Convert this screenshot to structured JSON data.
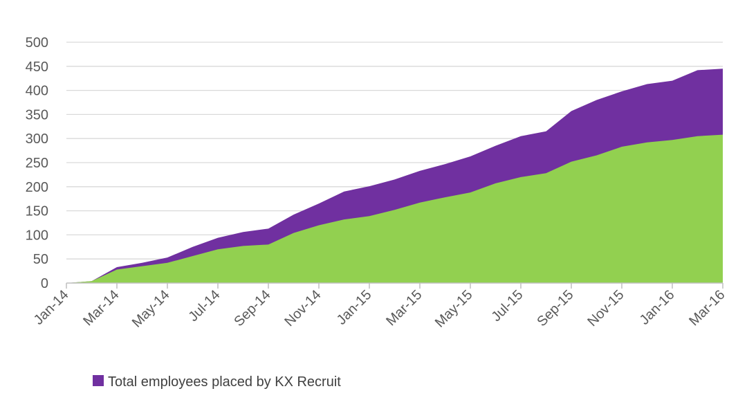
{
  "chart_data": {
    "type": "area",
    "title": "",
    "xlabel": "",
    "ylabel": "",
    "ylim": [
      0,
      500
    ],
    "yticks": [
      0,
      50,
      100,
      150,
      200,
      250,
      300,
      350,
      400,
      450,
      500
    ],
    "grid": true,
    "legend_position": "bottom-left",
    "x": [
      "Jan-14",
      "Feb-14",
      "Mar-14",
      "Apr-14",
      "May-14",
      "Jun-14",
      "Jul-14",
      "Aug-14",
      "Sep-14",
      "Oct-14",
      "Nov-14",
      "Dec-14",
      "Jan-15",
      "Feb-15",
      "Mar-15",
      "Apr-15",
      "May-15",
      "Jun-15",
      "Jul-15",
      "Aug-15",
      "Sep-15",
      "Oct-15",
      "Nov-15",
      "Dec-15",
      "Jan-16",
      "Feb-16",
      "Mar-16"
    ],
    "xtick_labels": [
      "Jan-14",
      "Mar-14",
      "May-14",
      "Jul-14",
      "Sep-14",
      "Nov-14",
      "Jan-15",
      "Mar-15",
      "May-15",
      "Jul-15",
      "Sep-15",
      "Nov-15",
      "Jan-16",
      "Mar-16"
    ],
    "series": [
      {
        "name": "Total employees placed by KX Recruit",
        "color": "#7030a0",
        "values": [
          0,
          4,
          33,
          42,
          53,
          75,
          94,
          106,
          113,
          142,
          165,
          190,
          201,
          215,
          233,
          247,
          263,
          285,
          305,
          315,
          357,
          380,
          398,
          413,
          420,
          442,
          445
        ]
      },
      {
        "name": "",
        "color": "#92d050",
        "values": [
          0,
          4,
          28,
          35,
          42,
          56,
          70,
          77,
          80,
          104,
          120,
          132,
          139,
          152,
          167,
          178,
          188,
          207,
          220,
          228,
          252,
          265,
          283,
          292,
          297,
          305,
          308
        ]
      }
    ]
  }
}
